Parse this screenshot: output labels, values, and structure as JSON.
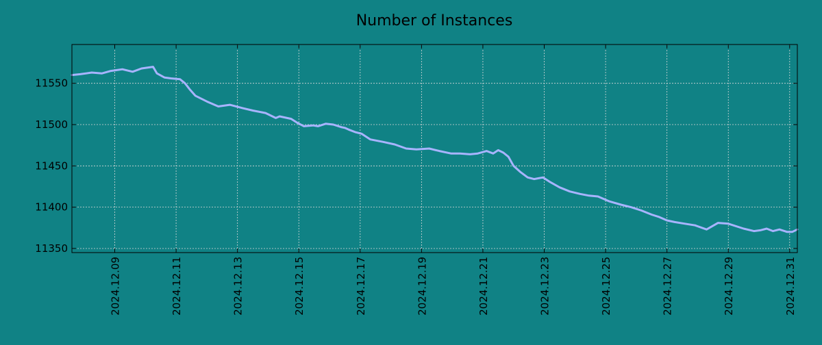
{
  "chart_data": {
    "type": "line",
    "title": "Number of Instances",
    "xlabel": "",
    "ylabel": "",
    "xlim": [
      "2024-12-07 14:30",
      "2024-12-31 06:00"
    ],
    "ylim": [
      11345,
      11597
    ],
    "grid": true,
    "x_ticks": [
      "2024.12.09",
      "2024.12.11",
      "2024.12.13",
      "2024.12.15",
      "2024.12.17",
      "2024.12.19",
      "2024.12.21",
      "2024.12.23",
      "2024.12.25",
      "2024.12.27",
      "2024.12.29",
      "2024.12.31"
    ],
    "y_ticks": [
      11350,
      11400,
      11450,
      11500,
      11550
    ],
    "colors": {
      "background": "#108285",
      "line": "#a8b4ff",
      "grid": "#d9d9d9"
    },
    "series": [
      {
        "x": [
          "2024-12-07 14:30",
          "2024-12-07 21:00",
          "2024-12-08 06:00",
          "2024-12-08 14:00",
          "2024-12-08 21:00",
          "2024-12-09 06:00",
          "2024-12-09 14:00",
          "2024-12-09 21:00",
          "2024-12-10 06:00",
          "2024-12-10 09:00",
          "2024-12-10 15:00",
          "2024-12-10 20:00",
          "2024-12-11 03:00",
          "2024-12-11 07:00",
          "2024-12-11 11:00",
          "2024-12-11 15:00",
          "2024-12-12 00:00",
          "2024-12-12 09:00",
          "2024-12-12 18:00",
          "2024-12-13 04:00",
          "2024-12-13 12:00",
          "2024-12-13 22:00",
          "2024-12-14 06:00",
          "2024-12-14 09:00",
          "2024-12-14 18:00",
          "2024-12-14 23:00",
          "2024-12-15 04:00",
          "2024-12-15 11:00",
          "2024-12-15 15:00",
          "2024-12-15 21:00",
          "2024-12-16 03:00",
          "2024-12-16 09:00",
          "2024-12-16 12:00",
          "2024-12-16 15:00",
          "2024-12-16 20:00",
          "2024-12-17 01:00",
          "2024-12-17 08:00",
          "2024-12-17 18:00",
          "2024-12-18 03:00",
          "2024-12-18 12:00",
          "2024-12-18 20:00",
          "2024-12-19 06:00",
          "2024-12-19 14:00",
          "2024-12-19 23:00",
          "2024-12-20 06:00",
          "2024-12-20 14:00",
          "2024-12-20 20:00",
          "2024-12-21 03:00",
          "2024-12-21 08:00",
          "2024-12-21 12:00",
          "2024-12-21 16:00",
          "2024-12-21 20:00",
          "2024-12-22 00:00",
          "2024-12-22 05:00",
          "2024-12-22 11:00",
          "2024-12-22 16:00",
          "2024-12-22 23:00",
          "2024-12-23 04:00",
          "2024-12-23 12:00",
          "2024-12-23 20:00",
          "2024-12-24 04:00",
          "2024-12-24 11:00",
          "2024-12-24 18:00",
          "2024-12-25 03:00",
          "2024-12-25 12:00",
          "2024-12-25 20:00",
          "2024-12-26 04:00",
          "2024-12-26 12:00",
          "2024-12-26 18:00",
          "2024-12-27 00:00",
          "2024-12-27 06:00",
          "2024-12-27 14:00",
          "2024-12-27 22:00",
          "2024-12-28 07:00",
          "2024-12-28 16:00",
          "2024-12-29 00:00",
          "2024-12-29 12:00",
          "2024-12-29 20:00",
          "2024-12-30 01:00",
          "2024-12-30 06:00",
          "2024-12-30 11:00",
          "2024-12-30 16:00",
          "2024-12-30 22:00",
          "2024-12-31 02:00",
          "2024-12-31 06:00"
        ],
        "y": [
          11560,
          11561,
          11563,
          11562,
          11565,
          11567,
          11564,
          11568,
          11570,
          11562,
          11557,
          11556,
          11555,
          11550,
          11542,
          11535,
          11528,
          11522,
          11524,
          11520,
          11517,
          11514,
          11508,
          11510,
          11507,
          11502,
          11498,
          11499,
          11498,
          11501,
          11500,
          11497,
          11496,
          11494,
          11491,
          11489,
          11482,
          11479,
          11476,
          11471,
          11470,
          11471,
          11468,
          11465,
          11465,
          11464,
          11465,
          11468,
          11465,
          11469,
          11466,
          11461,
          11450,
          11443,
          11436,
          11434,
          11436,
          11431,
          11424,
          11419,
          11416,
          11414,
          11413,
          11407,
          11403,
          11400,
          11396,
          11391,
          11388,
          11384,
          11382,
          11380,
          11378,
          11373,
          11381,
          11380,
          11374,
          11371,
          11372,
          11374,
          11371,
          11373,
          11370,
          11370,
          11373
        ]
      }
    ]
  }
}
